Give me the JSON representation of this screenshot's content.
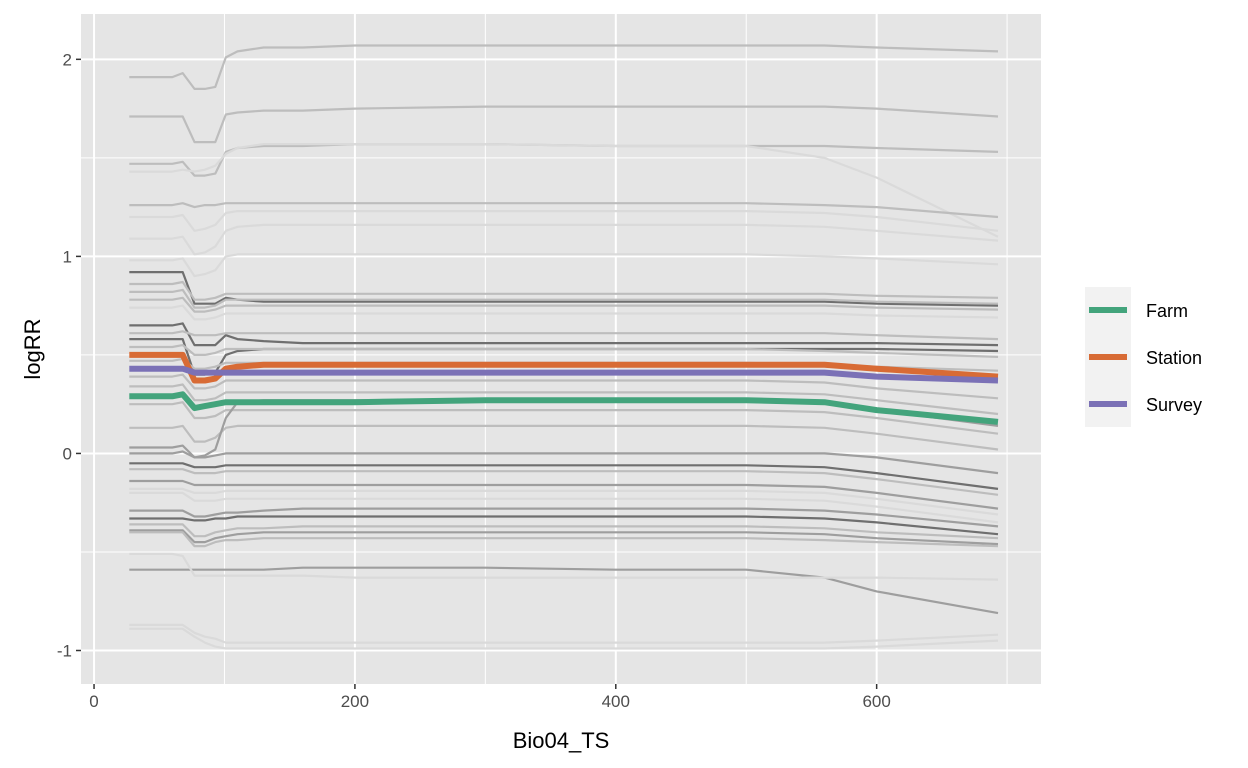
{
  "chart_data": {
    "type": "line",
    "xlabel": "Bio04_TS",
    "ylabel": "logRR",
    "xlim": [
      -10,
      726
    ],
    "ylim": [
      -1.17,
      2.23
    ],
    "x_ticks": [
      0,
      200,
      400,
      600
    ],
    "x_tick_labels": [
      "0",
      "200",
      "400",
      "600"
    ],
    "y_ticks": [
      -1,
      0,
      1,
      2
    ],
    "y_tick_labels": [
      "-1",
      "0",
      "1",
      "2"
    ],
    "grid": true,
    "legend_position": "right",
    "x": [
      27,
      60,
      68,
      77,
      85,
      93,
      101,
      110,
      130,
      160,
      200,
      300,
      400,
      500,
      560,
      600,
      693
    ],
    "background_series": [
      {
        "shade": "light",
        "values": [
          1.91,
          1.91,
          1.93,
          1.85,
          1.85,
          1.86,
          2.01,
          2.04,
          2.06,
          2.06,
          2.07,
          2.07,
          2.07,
          2.07,
          2.07,
          2.06,
          2.04
        ]
      },
      {
        "shade": "light",
        "values": [
          1.71,
          1.71,
          1.71,
          1.58,
          1.58,
          1.58,
          1.72,
          1.73,
          1.74,
          1.74,
          1.75,
          1.76,
          1.76,
          1.76,
          1.76,
          1.75,
          1.71
        ]
      },
      {
        "shade": "light",
        "values": [
          1.47,
          1.47,
          1.48,
          1.41,
          1.41,
          1.42,
          1.53,
          1.55,
          1.56,
          1.56,
          1.57,
          1.57,
          1.56,
          1.56,
          1.56,
          1.55,
          1.53
        ]
      },
      {
        "shade": "faint",
        "values": [
          1.43,
          1.43,
          1.44,
          1.43,
          1.44,
          1.46,
          1.52,
          1.55,
          1.57,
          1.57,
          1.57,
          1.57,
          1.56,
          1.56,
          1.5,
          1.4,
          1.1
        ]
      },
      {
        "shade": "light",
        "values": [
          1.26,
          1.26,
          1.27,
          1.25,
          1.26,
          1.26,
          1.27,
          1.27,
          1.27,
          1.27,
          1.27,
          1.27,
          1.27,
          1.27,
          1.26,
          1.25,
          1.2
        ]
      },
      {
        "shade": "faint",
        "values": [
          1.2,
          1.2,
          1.21,
          1.13,
          1.14,
          1.16,
          1.22,
          1.23,
          1.23,
          1.23,
          1.23,
          1.23,
          1.23,
          1.23,
          1.22,
          1.2,
          1.13
        ]
      },
      {
        "shade": "faint",
        "values": [
          1.09,
          1.09,
          1.1,
          1.01,
          1.02,
          1.05,
          1.13,
          1.15,
          1.16,
          1.16,
          1.16,
          1.16,
          1.16,
          1.16,
          1.15,
          1.13,
          1.08
        ]
      },
      {
        "shade": "faint",
        "values": [
          0.98,
          0.98,
          0.99,
          0.9,
          0.91,
          0.93,
          1.0,
          1.01,
          1.01,
          1.01,
          1.01,
          1.01,
          1.01,
          1.01,
          1.0,
          0.99,
          0.96
        ]
      },
      {
        "shade": "dark",
        "values": [
          0.92,
          0.92,
          0.92,
          0.76,
          0.76,
          0.76,
          0.79,
          0.78,
          0.77,
          0.77,
          0.77,
          0.77,
          0.77,
          0.77,
          0.77,
          0.76,
          0.75
        ]
      },
      {
        "shade": "light",
        "values": [
          0.86,
          0.86,
          0.87,
          0.78,
          0.78,
          0.79,
          0.81,
          0.81,
          0.81,
          0.81,
          0.81,
          0.81,
          0.81,
          0.81,
          0.81,
          0.8,
          0.79
        ]
      },
      {
        "shade": "light",
        "values": [
          0.82,
          0.82,
          0.83,
          0.74,
          0.74,
          0.75,
          0.78,
          0.78,
          0.78,
          0.78,
          0.78,
          0.78,
          0.78,
          0.78,
          0.78,
          0.77,
          0.76
        ]
      },
      {
        "shade": "light",
        "values": [
          0.78,
          0.78,
          0.79,
          0.72,
          0.72,
          0.73,
          0.75,
          0.75,
          0.75,
          0.75,
          0.75,
          0.75,
          0.75,
          0.75,
          0.75,
          0.74,
          0.73
        ]
      },
      {
        "shade": "faint",
        "values": [
          0.74,
          0.74,
          0.75,
          0.68,
          0.68,
          0.69,
          0.71,
          0.71,
          0.71,
          0.71,
          0.71,
          0.71,
          0.71,
          0.71,
          0.71,
          0.7,
          0.69
        ]
      },
      {
        "shade": "dark",
        "values": [
          0.65,
          0.65,
          0.66,
          0.55,
          0.55,
          0.55,
          0.6,
          0.58,
          0.57,
          0.56,
          0.56,
          0.56,
          0.56,
          0.56,
          0.56,
          0.56,
          0.55
        ]
      },
      {
        "shade": "dark",
        "values": [
          0.58,
          0.58,
          0.58,
          0.4,
          0.4,
          0.41,
          0.5,
          0.52,
          0.53,
          0.53,
          0.53,
          0.53,
          0.53,
          0.53,
          0.53,
          0.53,
          0.52
        ]
      },
      {
        "shade": "light",
        "values": [
          0.61,
          0.61,
          0.62,
          0.6,
          0.6,
          0.6,
          0.61,
          0.61,
          0.61,
          0.61,
          0.61,
          0.61,
          0.61,
          0.61,
          0.61,
          0.6,
          0.58
        ]
      },
      {
        "shade": "light",
        "values": [
          0.54,
          0.54,
          0.55,
          0.5,
          0.5,
          0.51,
          0.53,
          0.53,
          0.53,
          0.53,
          0.53,
          0.53,
          0.53,
          0.53,
          0.52,
          0.51,
          0.49
        ]
      },
      {
        "shade": "light",
        "values": [
          0.47,
          0.47,
          0.48,
          0.43,
          0.43,
          0.44,
          0.46,
          0.46,
          0.46,
          0.46,
          0.46,
          0.46,
          0.46,
          0.46,
          0.45,
          0.44,
          0.42
        ]
      },
      {
        "shade": "light",
        "values": [
          0.39,
          0.39,
          0.4,
          0.33,
          0.33,
          0.34,
          0.37,
          0.37,
          0.37,
          0.37,
          0.37,
          0.37,
          0.37,
          0.37,
          0.36,
          0.33,
          0.28
        ]
      },
      {
        "shade": "light",
        "values": [
          0.34,
          0.34,
          0.35,
          0.27,
          0.27,
          0.28,
          0.31,
          0.31,
          0.31,
          0.31,
          0.31,
          0.31,
          0.31,
          0.31,
          0.3,
          0.27,
          0.2
        ]
      },
      {
        "shade": "light",
        "values": [
          0.25,
          0.25,
          0.26,
          0.18,
          0.18,
          0.19,
          0.22,
          0.22,
          0.22,
          0.22,
          0.22,
          0.22,
          0.22,
          0.22,
          0.21,
          0.18,
          0.1
        ]
      },
      {
        "shade": "light",
        "values": [
          0.13,
          0.13,
          0.14,
          0.06,
          0.06,
          0.08,
          0.13,
          0.14,
          0.14,
          0.14,
          0.14,
          0.14,
          0.14,
          0.14,
          0.13,
          0.1,
          0.02
        ]
      },
      {
        "shade": "medium",
        "values": [
          0.03,
          0.03,
          0.04,
          -0.02,
          -0.01,
          0.02,
          0.18,
          0.26,
          0.27,
          0.27,
          0.27,
          0.27,
          0.27,
          0.27,
          0.26,
          0.22,
          0.14
        ]
      },
      {
        "shade": "medium",
        "values": [
          0.0,
          0.0,
          0.01,
          -0.02,
          -0.02,
          -0.01,
          0.0,
          0.0,
          0.0,
          0.0,
          0.0,
          0.0,
          0.0,
          0.0,
          0.0,
          -0.02,
          -0.1
        ]
      },
      {
        "shade": "dark",
        "values": [
          -0.05,
          -0.05,
          -0.05,
          -0.07,
          -0.07,
          -0.07,
          -0.06,
          -0.06,
          -0.06,
          -0.06,
          -0.06,
          -0.06,
          -0.06,
          -0.06,
          -0.07,
          -0.1,
          -0.18
        ]
      },
      {
        "shade": "light",
        "values": [
          -0.08,
          -0.08,
          -0.08,
          -0.1,
          -0.1,
          -0.1,
          -0.09,
          -0.09,
          -0.09,
          -0.09,
          -0.09,
          -0.09,
          -0.09,
          -0.09,
          -0.1,
          -0.13,
          -0.21
        ]
      },
      {
        "shade": "medium",
        "values": [
          -0.14,
          -0.14,
          -0.14,
          -0.16,
          -0.16,
          -0.16,
          -0.16,
          -0.16,
          -0.16,
          -0.16,
          -0.16,
          -0.16,
          -0.16,
          -0.16,
          -0.17,
          -0.2,
          -0.28
        ]
      },
      {
        "shade": "faint",
        "values": [
          -0.18,
          -0.18,
          -0.18,
          -0.2,
          -0.2,
          -0.2,
          -0.19,
          -0.19,
          -0.19,
          -0.19,
          -0.19,
          -0.19,
          -0.19,
          -0.19,
          -0.2,
          -0.23,
          -0.31
        ]
      },
      {
        "shade": "faint",
        "values": [
          -0.2,
          -0.2,
          -0.2,
          -0.24,
          -0.24,
          -0.24,
          -0.23,
          -0.23,
          -0.23,
          -0.23,
          -0.23,
          -0.23,
          -0.23,
          -0.23,
          -0.24,
          -0.27,
          -0.35
        ]
      },
      {
        "shade": "medium",
        "values": [
          -0.29,
          -0.29,
          -0.29,
          -0.32,
          -0.32,
          -0.31,
          -0.3,
          -0.3,
          -0.29,
          -0.28,
          -0.28,
          -0.28,
          -0.28,
          -0.28,
          -0.29,
          -0.31,
          -0.37
        ]
      },
      {
        "shade": "dark",
        "values": [
          -0.33,
          -0.33,
          -0.33,
          -0.34,
          -0.34,
          -0.33,
          -0.33,
          -0.32,
          -0.32,
          -0.32,
          -0.32,
          -0.32,
          -0.32,
          -0.32,
          -0.33,
          -0.35,
          -0.41
        ]
      },
      {
        "shade": "light",
        "values": [
          -0.36,
          -0.36,
          -0.36,
          -0.42,
          -0.42,
          -0.4,
          -0.39,
          -0.38,
          -0.38,
          -0.37,
          -0.37,
          -0.37,
          -0.37,
          -0.37,
          -0.38,
          -0.4,
          -0.43
        ]
      },
      {
        "shade": "medium",
        "values": [
          -0.39,
          -0.39,
          -0.39,
          -0.45,
          -0.45,
          -0.43,
          -0.42,
          -0.41,
          -0.4,
          -0.4,
          -0.4,
          -0.4,
          -0.4,
          -0.4,
          -0.41,
          -0.43,
          -0.46
        ]
      },
      {
        "shade": "light",
        "values": [
          -0.4,
          -0.4,
          -0.4,
          -0.47,
          -0.47,
          -0.45,
          -0.44,
          -0.44,
          -0.43,
          -0.43,
          -0.43,
          -0.43,
          -0.43,
          -0.43,
          -0.44,
          -0.45,
          -0.47
        ]
      },
      {
        "shade": "medium",
        "values": [
          -0.59,
          -0.59,
          -0.59,
          -0.59,
          -0.59,
          -0.59,
          -0.59,
          -0.59,
          -0.59,
          -0.58,
          -0.58,
          -0.58,
          -0.59,
          -0.59,
          -0.63,
          -0.7,
          -0.81
        ]
      },
      {
        "shade": "faint",
        "values": [
          -0.51,
          -0.51,
          -0.52,
          -0.62,
          -0.62,
          -0.62,
          -0.62,
          -0.62,
          -0.62,
          -0.62,
          -0.63,
          -0.63,
          -0.63,
          -0.63,
          -0.63,
          -0.63,
          -0.64
        ]
      },
      {
        "shade": "faint",
        "values": [
          -0.87,
          -0.87,
          -0.87,
          -0.91,
          -0.93,
          -0.94,
          -0.96,
          -0.96,
          -0.96,
          -0.96,
          -0.96,
          -0.96,
          -0.96,
          -0.96,
          -0.96,
          -0.95,
          -0.92
        ]
      },
      {
        "shade": "faint",
        "values": [
          -0.89,
          -0.89,
          -0.89,
          -0.93,
          -0.96,
          -0.98,
          -0.99,
          -0.99,
          -0.99,
          -0.99,
          -0.99,
          -0.99,
          -0.99,
          -0.99,
          -0.99,
          -0.98,
          -0.95
        ]
      }
    ],
    "series": [
      {
        "name": "Farm",
        "color": "#43a47c",
        "values": [
          0.29,
          0.29,
          0.3,
          0.23,
          0.24,
          0.25,
          0.26,
          0.26,
          0.26,
          0.26,
          0.26,
          0.27,
          0.27,
          0.27,
          0.26,
          0.22,
          0.16
        ]
      },
      {
        "name": "Station",
        "color": "#d86b35",
        "values": [
          0.5,
          0.5,
          0.5,
          0.37,
          0.37,
          0.38,
          0.43,
          0.44,
          0.45,
          0.45,
          0.45,
          0.45,
          0.45,
          0.45,
          0.45,
          0.43,
          0.39
        ]
      },
      {
        "name": "Survey",
        "color": "#7b71b6",
        "values": [
          0.43,
          0.43,
          0.43,
          0.41,
          0.41,
          0.41,
          0.41,
          0.41,
          0.41,
          0.41,
          0.41,
          0.41,
          0.41,
          0.41,
          0.41,
          0.39,
          0.37
        ]
      }
    ],
    "shade_colors": {
      "faint": "#dadada",
      "light": "#bdbdbd",
      "medium": "#9e9e9e",
      "dark": "#6f6f6f"
    },
    "panel_background": "#e5e5e5",
    "grid_color": "#ffffff"
  }
}
